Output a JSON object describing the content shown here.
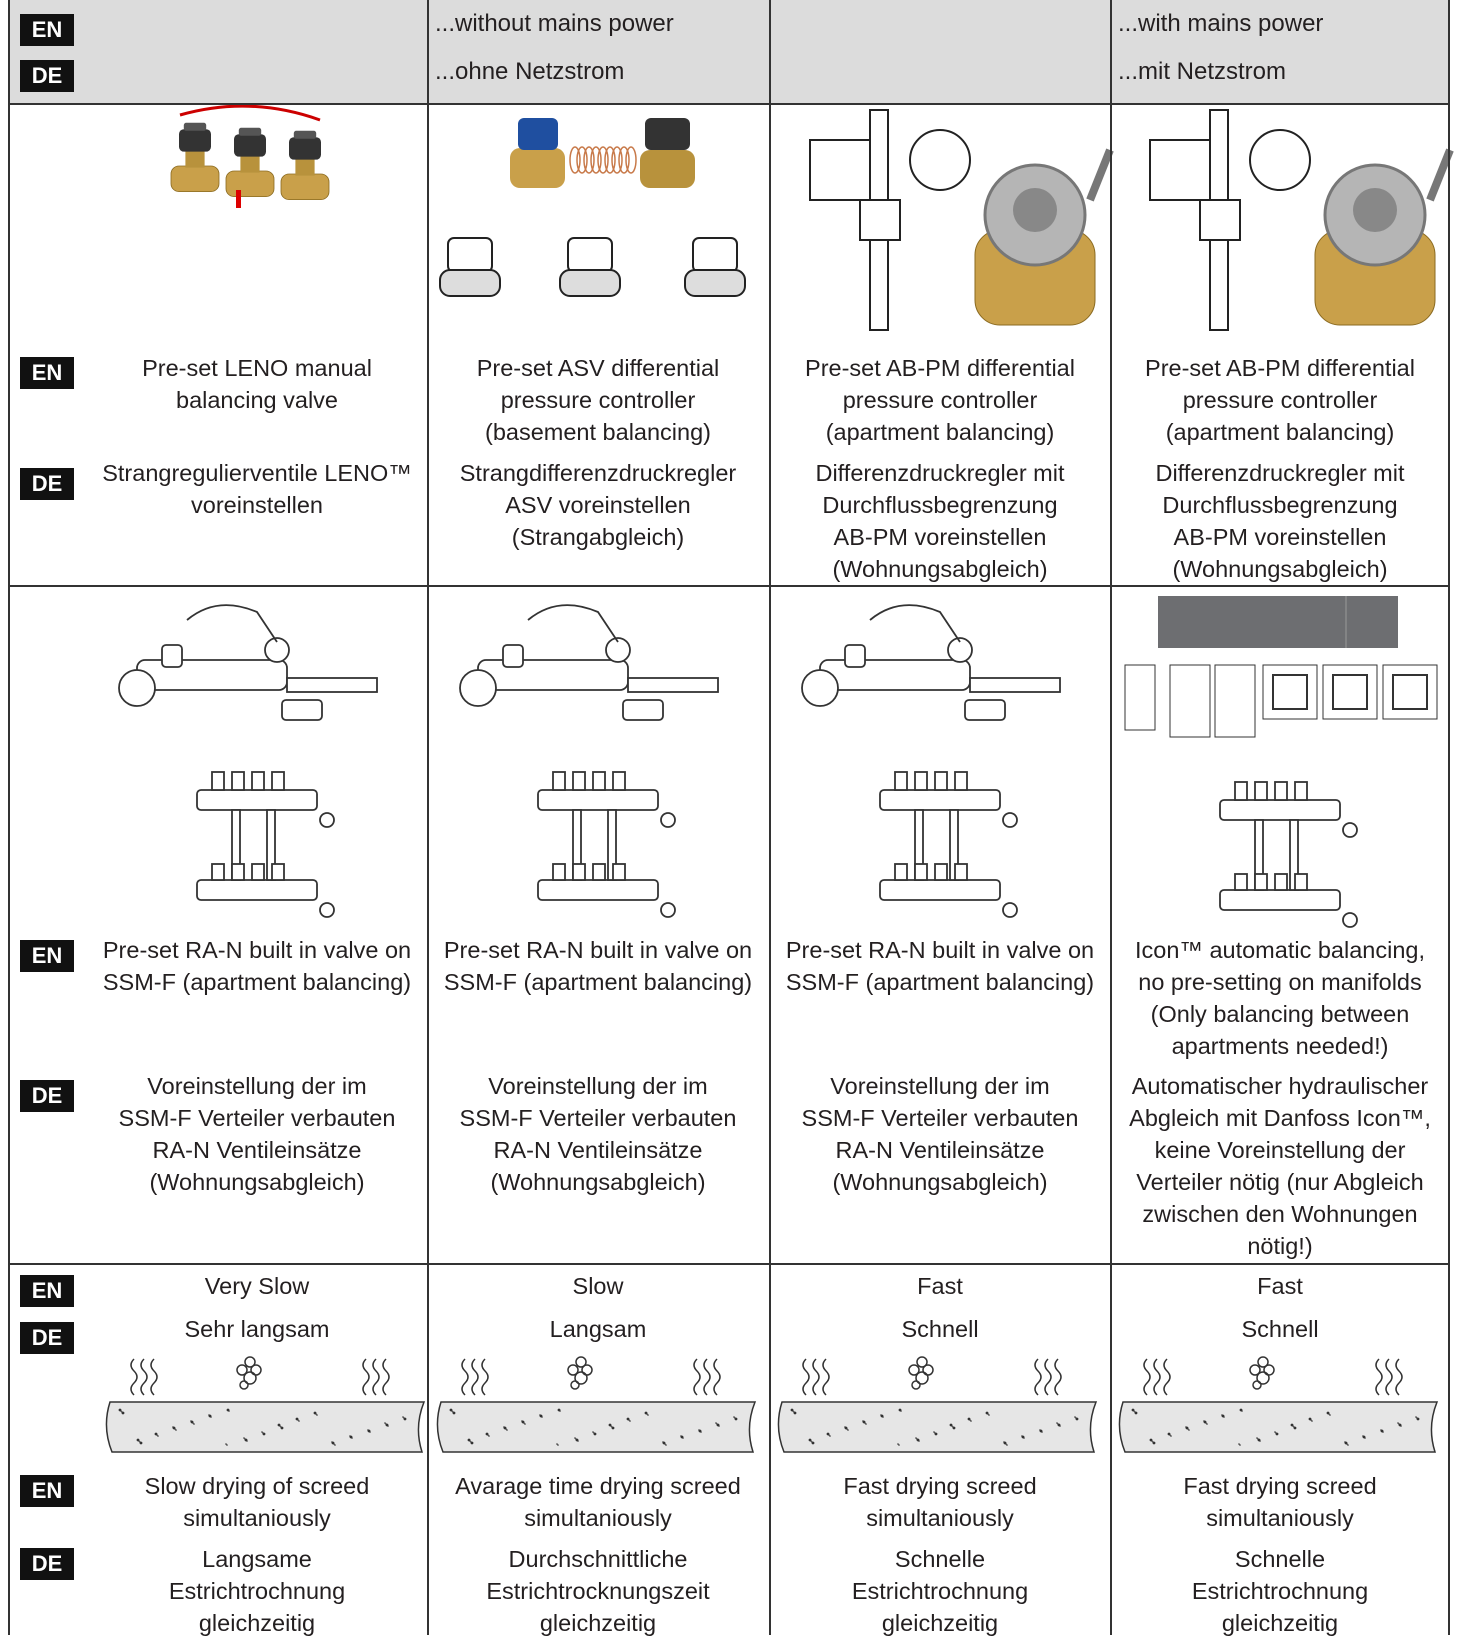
{
  "labels": {
    "en": "EN",
    "de": "DE"
  },
  "header": {
    "without": {
      "en": "...without mains power",
      "de": "...ohne Netzstrom"
    },
    "with": {
      "en": "...with mains power",
      "de": "...mit Netzstrom"
    }
  },
  "valves": {
    "en": [
      [
        "Pre-set LENO manual",
        "balancing valve"
      ],
      [
        "Pre-set ASV differential",
        "pressure controller",
        "(basement balancing)"
      ],
      [
        "Pre-set AB-PM differential",
        "pressure controller",
        "(apartment balancing)"
      ],
      [
        "Pre-set AB-PM differential",
        "pressure controller",
        "(apartment balancing)"
      ]
    ],
    "de": [
      [
        "Strangregulierventile LENO™",
        "voreinstellen"
      ],
      [
        "Strangdifferenzdruckregler",
        "ASV voreinstellen",
        "(Strangabgleich)"
      ],
      [
        "Differenzdruckregler mit",
        "Durchflussbegrenzung",
        "AB-PM voreinstellen",
        "(Wohnungsabgleich)"
      ],
      [
        "Differenzdruckregler mit",
        "Durchflussbegrenzung",
        "AB-PM voreinstellen",
        "(Wohnungsabgleich)"
      ]
    ]
  },
  "manifolds": {
    "en": [
      [
        "Pre-set RA-N built in valve on",
        "SSM-F (apartment balancing)"
      ],
      [
        "Pre-set RA-N built in valve on",
        "SSM-F (apartment balancing)"
      ],
      [
        "Pre-set RA-N built in valve on",
        "SSM-F (apartment balancing)"
      ],
      [
        "Icon™ automatic balancing,",
        "no pre-setting on manifolds",
        "(Only balancing between",
        "apartments needed!)"
      ]
    ],
    "de": [
      [
        "Voreinstellung der im",
        "SSM-F Verteiler verbauten",
        "RA-N Ventileinsätze",
        "(Wohnungsabgleich)"
      ],
      [
        "Voreinstellung der im",
        "SSM-F Verteiler verbauten",
        "RA-N Ventileinsätze",
        "(Wohnungsabgleich)"
      ],
      [
        "Voreinstellung der im",
        "SSM-F Verteiler verbauten",
        "RA-N Ventileinsätze",
        "(Wohnungsabgleich)"
      ],
      [
        "Automatischer hydraulischer",
        "Abgleich mit Danfoss Icon™,",
        "keine Voreinstellung der",
        "Verteiler nötig (nur Abgleich",
        "zwischen den Wohnungen",
        "nötig!)"
      ]
    ]
  },
  "speed": {
    "en": [
      "Very Slow",
      "Slow",
      "Fast",
      "Fast"
    ],
    "de": [
      "Sehr langsam",
      "Langsam",
      "Schnell",
      "Schnell"
    ]
  },
  "drying": {
    "en": [
      [
        "Slow drying of screed",
        "simultaniously"
      ],
      [
        "Avarage time drying screed",
        "simultaniously"
      ],
      [
        "Fast drying screed",
        "simultaniously"
      ],
      [
        "Fast drying screed",
        "simultaniously"
      ]
    ],
    "de": [
      [
        "Langsame",
        "Estrichtrochnung",
        "gleichzeitig"
      ],
      [
        "Durchschnittliche",
        "Estrichtrocknungszeit",
        "gleichzeitig"
      ],
      [
        "Schnelle",
        "Estrichtrochnung",
        "gleichzeitig"
      ],
      [
        "Schnelle",
        "Estrichtrochnung",
        "gleichzeitig"
      ]
    ]
  }
}
